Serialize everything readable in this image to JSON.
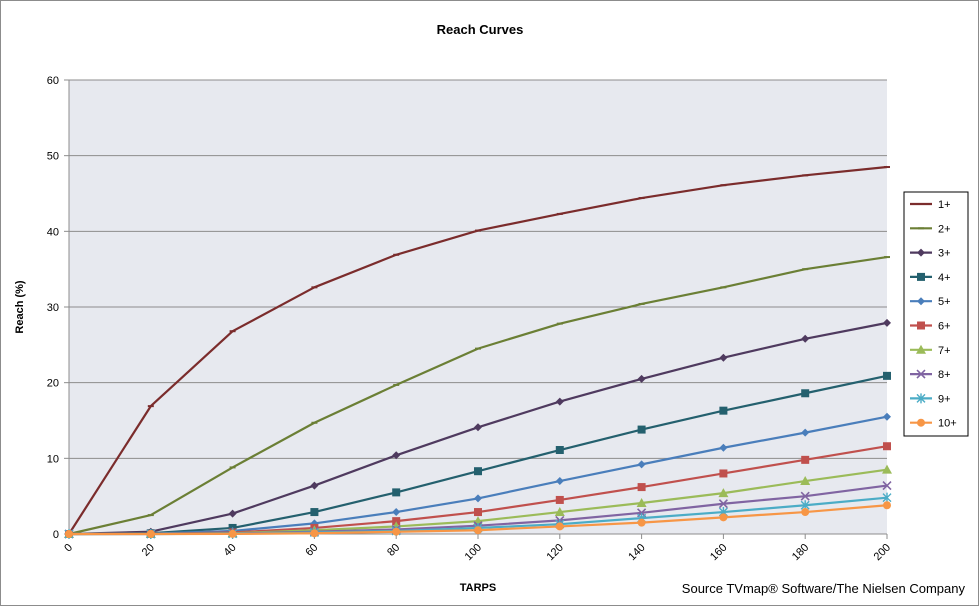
{
  "chart_data": {
    "type": "line",
    "title": "Reach Curves",
    "xlabel": "TARPS",
    "ylabel": "Reach (%)",
    "source": "Source TVmap® Software/The Nielsen Company",
    "xlim": [
      0,
      200
    ],
    "ylim": [
      0,
      60
    ],
    "x_ticks": [
      0,
      20,
      40,
      60,
      80,
      100,
      120,
      140,
      160,
      180,
      200
    ],
    "y_ticks": [
      0,
      10,
      20,
      30,
      40,
      50,
      60
    ],
    "grid": true,
    "legend_position": "right",
    "x": [
      0,
      20,
      40,
      60,
      80,
      100,
      120,
      140,
      160,
      180,
      200
    ],
    "series": [
      {
        "name": "1+",
        "color": "#7b2c2c",
        "marker": "dash",
        "values": [
          0,
          16.9,
          26.8,
          32.6,
          36.9,
          40.1,
          42.3,
          44.4,
          46.1,
          47.4,
          48.5
        ]
      },
      {
        "name": "2+",
        "color": "#6b7f35",
        "marker": "dash",
        "values": [
          0,
          2.5,
          8.8,
          14.7,
          19.7,
          24.5,
          27.8,
          30.4,
          32.6,
          35.0,
          36.6
        ]
      },
      {
        "name": "3+",
        "color": "#4f3a5f",
        "marker": "diamond",
        "values": [
          0,
          0.3,
          2.7,
          6.4,
          10.4,
          14.1,
          17.5,
          20.5,
          23.3,
          25.8,
          27.9
        ]
      },
      {
        "name": "4+",
        "color": "#24606e",
        "marker": "square",
        "values": [
          0,
          0.1,
          0.8,
          2.9,
          5.5,
          8.3,
          11.1,
          13.8,
          16.3,
          18.6,
          20.9
        ]
      },
      {
        "name": "5+",
        "color": "#4a7ebb",
        "marker": "diamond",
        "values": [
          0,
          0.05,
          0.4,
          1.4,
          2.9,
          4.7,
          7.0,
          9.2,
          11.4,
          13.4,
          15.5
        ]
      },
      {
        "name": "6+",
        "color": "#c0504d",
        "marker": "square",
        "values": [
          0,
          0.02,
          0.2,
          0.8,
          1.7,
          2.9,
          4.5,
          6.2,
          8.0,
          9.8,
          11.6
        ]
      },
      {
        "name": "7+",
        "color": "#9bbb59",
        "marker": "triangle",
        "values": [
          0,
          0.01,
          0.1,
          0.5,
          1.0,
          1.7,
          2.9,
          4.1,
          5.4,
          7.0,
          8.5
        ]
      },
      {
        "name": "8+",
        "color": "#8064a2",
        "marker": "x",
        "values": [
          0,
          0.0,
          0.05,
          0.3,
          0.6,
          1.1,
          1.8,
          2.8,
          4.0,
          5.0,
          6.4
        ]
      },
      {
        "name": "9+",
        "color": "#4bacc6",
        "marker": "star",
        "values": [
          0,
          0.0,
          0.03,
          0.2,
          0.4,
          0.8,
          1.3,
          2.1,
          2.9,
          3.8,
          4.8
        ]
      },
      {
        "name": "10+",
        "color": "#f79646",
        "marker": "circle",
        "values": [
          0,
          0.0,
          0.01,
          0.1,
          0.3,
          0.5,
          1.0,
          1.5,
          2.2,
          2.9,
          3.8
        ]
      }
    ]
  }
}
